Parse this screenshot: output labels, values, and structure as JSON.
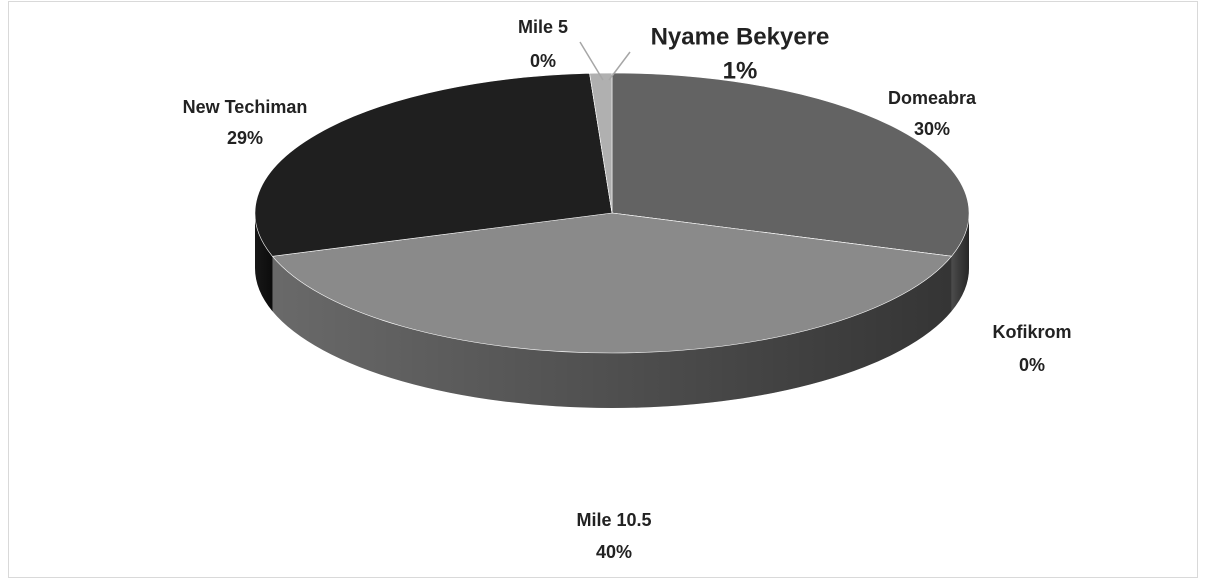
{
  "chart_data": {
    "type": "pie3d",
    "categories": [
      "Domeabra",
      "Kofikrom",
      "Mile 10.5",
      "New Techiman",
      "Mile 5",
      "Nyame Bekyere"
    ],
    "values": [
      30,
      0,
      40,
      29,
      0,
      1
    ],
    "value_labels": [
      "30%",
      "0%",
      "40%",
      "29%",
      "0%",
      "1%"
    ],
    "colors": [
      "#636363",
      "#7a7a7a",
      "#8a8a8a",
      "#1f1f1f",
      "#9a9a9a",
      "#b0b0b0"
    ]
  }
}
